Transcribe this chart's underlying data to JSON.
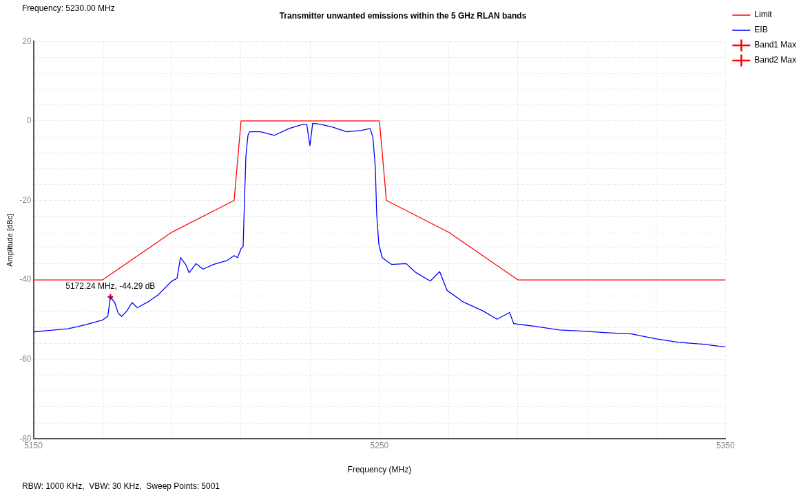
{
  "chart_data": {
    "type": "line",
    "title": "Transmitter unwanted emissions within the 5 GHz RLAN bands",
    "xlabel": "Frequency (MHz)",
    "ylabel": "Amplitude [dBc]",
    "annotations": [
      "Frequency: 5230.00 MHz",
      "RBW: 1000 KHz,  VBW: 30 KHz,  Sweep Points: 5001",
      {
        "text": "5172.24 MHz, -44.29 dB",
        "x": 5172.24,
        "y": -44.29
      }
    ],
    "xlim": [
      5150,
      5350
    ],
    "xticks": [
      5150,
      {
        "value": 5170,
        "label": null
      },
      {
        "value": 5190,
        "label": null
      },
      {
        "value": 5210,
        "label": null
      },
      {
        "value": 5230,
        "label": null
      },
      5250,
      {
        "value": 5270,
        "label": null
      },
      {
        "value": 5290,
        "label": null
      },
      {
        "value": 5310,
        "label": null
      },
      {
        "value": 5330,
        "label": null
      },
      5350
    ],
    "ylim": [
      -80,
      20
    ],
    "yticks": [
      -80,
      {
        "value": -76,
        "label": null
      },
      {
        "value": -72,
        "label": null
      },
      {
        "value": -68,
        "label": null
      },
      {
        "value": -64,
        "label": null
      },
      -60,
      {
        "value": -56,
        "label": null
      },
      {
        "value": -52,
        "label": null
      },
      {
        "value": -48,
        "label": null
      },
      {
        "value": -44,
        "label": null
      },
      -40,
      {
        "value": -36,
        "label": null
      },
      {
        "value": -32,
        "label": null
      },
      {
        "value": -28,
        "label": null
      },
      {
        "value": -24,
        "label": null
      },
      -20,
      {
        "value": -16,
        "label": null
      },
      {
        "value": -12,
        "label": null
      },
      {
        "value": -8,
        "label": null
      },
      {
        "value": -4,
        "label": null
      },
      0,
      {
        "value": 4,
        "label": null
      },
      {
        "value": 8,
        "label": null
      },
      {
        "value": 12,
        "label": null
      },
      {
        "value": 16,
        "label": null
      },
      20
    ],
    "grid": true,
    "legend": "top right",
    "series": [
      {
        "name": "Limit",
        "type": "line",
        "marker": "none",
        "color": "#ff0000",
        "x": [
          5150,
          5170,
          5190,
          5208,
          5210,
          5250,
          5252,
          5270,
          5290,
          5350
        ],
        "values": [
          -40,
          -40,
          -28,
          -20,
          0,
          0,
          -20,
          -28,
          -40,
          -40
        ]
      },
      {
        "name": "EIB",
        "type": "line",
        "marker": "none",
        "color": "#0000ff",
        "x": [
          5150,
          5155,
          5160,
          5165,
          5170,
          5171.5,
          5172.24,
          5173.5,
          5174.5,
          5175.5,
          5177,
          5178.5,
          5180,
          5183,
          5186,
          5190,
          5191.5,
          5192.5,
          5194,
          5195,
          5197,
          5199,
          5202,
          5206,
          5208,
          5209,
          5210,
          5210.6,
          5211,
          5211.4,
          5212,
          5212.5,
          5215.6,
          5219.7,
          5223.9,
          5228,
          5229,
          5229.9,
          5230.7,
          5232.8,
          5236.3,
          5240.5,
          5244.6,
          5247.3,
          5248.1,
          5248.8,
          5249.2,
          5249.8,
          5250.8,
          5253.5,
          5257.7,
          5260.6,
          5264.7,
          5267.4,
          5269.5,
          5274.3,
          5279.9,
          5284,
          5287.6,
          5288.8,
          5295,
          5302,
          5308.9,
          5315.8,
          5322.8,
          5329.7,
          5336.5,
          5343.6,
          5350
        ],
        "values": [
          -53.1,
          -52.7,
          -52.3,
          -51.3,
          -50.1,
          -49.1,
          -44.29,
          -45.7,
          -48.4,
          -49.2,
          -47.8,
          -45.7,
          -47,
          -45.6,
          -43.8,
          -40.3,
          -39.6,
          -34.4,
          -36.1,
          -38.2,
          -35.9,
          -37.3,
          -36.1,
          -35.1,
          -33.9,
          -34.4,
          -32.1,
          -31.6,
          -20,
          -8.8,
          -3.6,
          -2.7,
          -2.7,
          -3.6,
          -1.9,
          -0.8,
          -0.9,
          -6.2,
          -0.6,
          -0.8,
          -1.5,
          -2.7,
          -2.4,
          -1.9,
          -4.1,
          -11.6,
          -23.4,
          -30.9,
          -34.4,
          -36.1,
          -35.9,
          -38.2,
          -40.3,
          -37.9,
          -42.6,
          -45.6,
          -47.8,
          -49.9,
          -48.2,
          -51,
          -51.7,
          -52.6,
          -52.9,
          -53.3,
          -53.6,
          -54.8,
          -55.7,
          -56.2,
          -56.9
        ]
      },
      {
        "name": "Band1 Max",
        "type": "scatter",
        "marker": "cross",
        "color": "#ff0000",
        "x": [
          5172.24
        ],
        "values": [
          -44.29
        ]
      },
      {
        "name": "Band2 Max",
        "type": "scatter",
        "marker": "cross",
        "color": "#ff0000"
      }
    ]
  }
}
